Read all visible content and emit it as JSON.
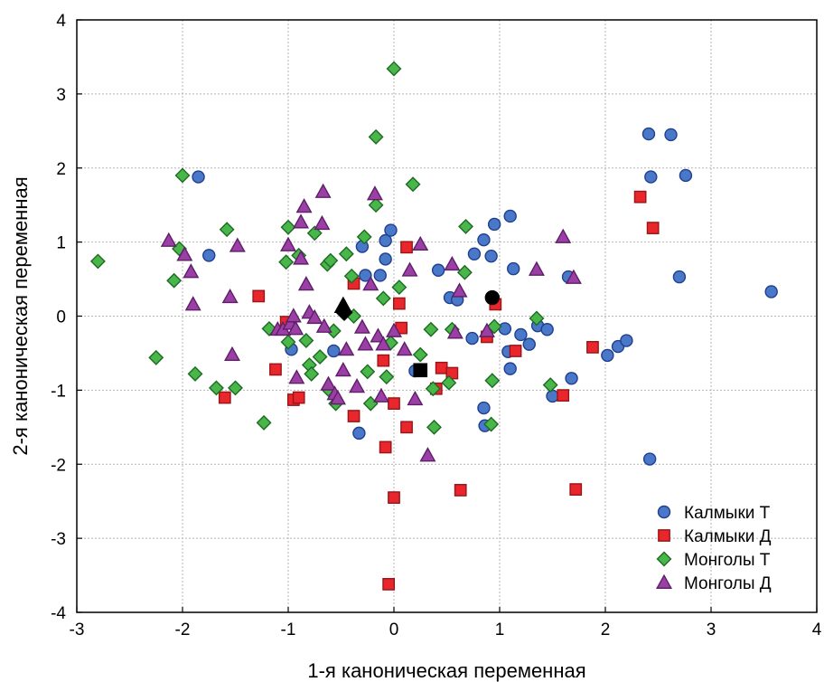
{
  "chart_data": {
    "type": "scatter",
    "title": "",
    "xlabel": "1-я каноническая переменная",
    "ylabel": "2-я каноническая переменная",
    "xlim": [
      -3,
      4
    ],
    "ylim": [
      -4,
      4
    ],
    "xticks": [
      "-3",
      "-2",
      "-1",
      "0",
      "1",
      "2",
      "3",
      "4"
    ],
    "yticks": [
      "4",
      "3",
      "2",
      "1",
      "0",
      "-1",
      "-2",
      "-3",
      "-4"
    ],
    "grid": true,
    "legend_position": "bottom-right",
    "series": [
      {
        "name": "Калмыки Т",
        "marker": "circle",
        "color": "#4a78c8",
        "edge": "#1f3f8f",
        "points": [
          [
            -1.85,
            1.88
          ],
          [
            -1.75,
            0.82
          ],
          [
            -0.97,
            -0.45
          ],
          [
            -0.57,
            -0.47
          ],
          [
            -0.33,
            -1.58
          ],
          [
            -0.3,
            0.94
          ],
          [
            -0.27,
            0.55
          ],
          [
            -0.13,
            0.55
          ],
          [
            -0.08,
            0.77
          ],
          [
            -0.08,
            1.02
          ],
          [
            -0.03,
            1.16
          ],
          [
            0.2,
            -0.74
          ],
          [
            0.42,
            0.62
          ],
          [
            0.53,
            0.25
          ],
          [
            0.6,
            0.22
          ],
          [
            0.74,
            -0.3
          ],
          [
            0.76,
            0.84
          ],
          [
            0.85,
            1.03
          ],
          [
            0.85,
            -1.24
          ],
          [
            0.86,
            -1.48
          ],
          [
            0.92,
            0.81
          ],
          [
            0.95,
            1.24
          ],
          [
            1.05,
            -0.17
          ],
          [
            1.08,
            -0.48
          ],
          [
            1.1,
            1.35
          ],
          [
            1.1,
            -0.71
          ],
          [
            1.13,
            0.64
          ],
          [
            1.2,
            -0.25
          ],
          [
            1.28,
            -0.38
          ],
          [
            1.36,
            -0.13
          ],
          [
            1.45,
            -0.18
          ],
          [
            1.5,
            -1.08
          ],
          [
            1.65,
            0.53
          ],
          [
            1.68,
            -0.84
          ],
          [
            2.02,
            -0.53
          ],
          [
            2.12,
            -0.41
          ],
          [
            2.2,
            -0.33
          ],
          [
            2.41,
            2.46
          ],
          [
            2.42,
            -1.93
          ],
          [
            2.43,
            1.88
          ],
          [
            2.62,
            2.45
          ],
          [
            2.7,
            0.53
          ],
          [
            2.76,
            1.9
          ],
          [
            3.57,
            0.33
          ]
        ]
      },
      {
        "name": "Калмыки Д",
        "marker": "square",
        "color": "#e8262c",
        "edge": "#9a1418",
        "points": [
          [
            -1.6,
            -1.1
          ],
          [
            -1.28,
            0.27
          ],
          [
            -1.12,
            -0.72
          ],
          [
            -1.02,
            -0.08
          ],
          [
            -0.95,
            -1.13
          ],
          [
            -0.9,
            -1.1
          ],
          [
            -0.38,
            0.44
          ],
          [
            -0.38,
            -1.35
          ],
          [
            -0.1,
            -0.6
          ],
          [
            -0.08,
            -1.77
          ],
          [
            -0.05,
            -3.62
          ],
          [
            0.0,
            -1.18
          ],
          [
            0.0,
            -2.45
          ],
          [
            0.05,
            0.17
          ],
          [
            0.07,
            -0.16
          ],
          [
            0.12,
            0.93
          ],
          [
            0.12,
            -1.5
          ],
          [
            0.25,
            -0.72
          ],
          [
            0.4,
            -0.98
          ],
          [
            0.45,
            -0.7
          ],
          [
            0.55,
            -0.77
          ],
          [
            0.63,
            -2.35
          ],
          [
            0.88,
            -0.28
          ],
          [
            0.96,
            0.16
          ],
          [
            1.15,
            -0.47
          ],
          [
            1.6,
            -1.07
          ],
          [
            1.72,
            -2.34
          ],
          [
            1.88,
            -0.42
          ],
          [
            2.33,
            1.61
          ],
          [
            2.45,
            1.19
          ]
        ]
      },
      {
        "name": "Монголы Т",
        "marker": "diamond",
        "color": "#49b649",
        "edge": "#1d6b23",
        "points": [
          [
            -2.8,
            0.74
          ],
          [
            -2.25,
            -0.56
          ],
          [
            -2.08,
            0.48
          ],
          [
            -2.03,
            0.91
          ],
          [
            -2.0,
            1.9
          ],
          [
            -1.88,
            -0.78
          ],
          [
            -1.68,
            -0.97
          ],
          [
            -1.58,
            1.17
          ],
          [
            -1.5,
            -0.97
          ],
          [
            -1.23,
            -1.44
          ],
          [
            -1.18,
            -0.17
          ],
          [
            -1.02,
            0.73
          ],
          [
            -1.0,
            1.2
          ],
          [
            -1.0,
            -0.35
          ],
          [
            -0.9,
            0.82
          ],
          [
            -0.83,
            -0.33
          ],
          [
            -0.8,
            -0.66
          ],
          [
            -0.78,
            -0.78
          ],
          [
            -0.75,
            1.12
          ],
          [
            -0.7,
            -0.55
          ],
          [
            -0.63,
            0.7
          ],
          [
            -0.62,
            -0.99
          ],
          [
            -0.6,
            0.75
          ],
          [
            -0.57,
            -0.2
          ],
          [
            -0.55,
            -1.18
          ],
          [
            -0.48,
            0.05
          ],
          [
            -0.45,
            0.84
          ],
          [
            -0.4,
            0.54
          ],
          [
            -0.38,
            0.0
          ],
          [
            -0.28,
            1.07
          ],
          [
            -0.25,
            -0.75
          ],
          [
            -0.22,
            -1.18
          ],
          [
            -0.17,
            2.42
          ],
          [
            -0.17,
            1.5
          ],
          [
            -0.1,
            0.24
          ],
          [
            -0.07,
            -0.82
          ],
          [
            -0.03,
            -0.36
          ],
          [
            0.0,
            3.34
          ],
          [
            0.05,
            0.39
          ],
          [
            0.18,
            1.78
          ],
          [
            0.25,
            -0.52
          ],
          [
            0.35,
            -0.18
          ],
          [
            0.37,
            -0.98
          ],
          [
            0.38,
            -1.5
          ],
          [
            0.52,
            -0.9
          ],
          [
            0.55,
            -0.18
          ],
          [
            0.67,
            0.59
          ],
          [
            0.68,
            1.21
          ],
          [
            0.92,
            -1.46
          ],
          [
            0.93,
            -0.87
          ],
          [
            0.95,
            -0.14
          ],
          [
            1.35,
            -0.03
          ],
          [
            1.48,
            -0.93
          ]
        ]
      },
      {
        "name": "Монголы Д",
        "marker": "triangle",
        "color": "#9b3fa6",
        "edge": "#5d1f66",
        "points": [
          [
            -2.13,
            1.02
          ],
          [
            -1.98,
            0.83
          ],
          [
            -1.92,
            0.6
          ],
          [
            -1.9,
            0.16
          ],
          [
            -1.53,
            -0.52
          ],
          [
            -1.55,
            0.26
          ],
          [
            -1.48,
            0.95
          ],
          [
            -1.1,
            -0.18
          ],
          [
            -1.05,
            -0.18
          ],
          [
            -1.0,
            0.96
          ],
          [
            -0.98,
            -0.1
          ],
          [
            -0.95,
            0.0
          ],
          [
            -0.93,
            -0.17
          ],
          [
            -0.92,
            -0.83
          ],
          [
            -0.88,
            0.78
          ],
          [
            -0.88,
            1.27
          ],
          [
            -0.85,
            1.48
          ],
          [
            -0.83,
            0.43
          ],
          [
            -0.8,
            0.05
          ],
          [
            -0.75,
            -0.02
          ],
          [
            -0.68,
            1.25
          ],
          [
            -0.67,
            1.68
          ],
          [
            -0.66,
            -0.14
          ],
          [
            -0.62,
            -0.92
          ],
          [
            -0.56,
            -1.05
          ],
          [
            -0.53,
            -1.11
          ],
          [
            -0.48,
            -0.73
          ],
          [
            -0.45,
            -0.45
          ],
          [
            -0.35,
            -0.95
          ],
          [
            -0.3,
            -0.15
          ],
          [
            -0.27,
            -0.38
          ],
          [
            -0.22,
            0.43
          ],
          [
            -0.18,
            1.65
          ],
          [
            -0.15,
            -0.27
          ],
          [
            -0.12,
            -1.08
          ],
          [
            -0.1,
            -0.38
          ],
          [
            0.0,
            -0.2
          ],
          [
            0.1,
            -0.45
          ],
          [
            0.15,
            0.62
          ],
          [
            0.2,
            -1.12
          ],
          [
            0.25,
            0.97
          ],
          [
            0.32,
            -1.88
          ],
          [
            0.55,
            0.7
          ],
          [
            0.58,
            -0.22
          ],
          [
            0.62,
            0.34
          ],
          [
            0.88,
            -0.2
          ],
          [
            1.35,
            0.63
          ],
          [
            1.6,
            1.07
          ],
          [
            1.7,
            0.52
          ]
        ]
      }
    ],
    "centroids": [
      {
        "series": "Калмыки Т",
        "marker": "circle",
        "x": 0.93,
        "y": 0.25
      },
      {
        "series": "Калмыки Д",
        "marker": "square",
        "x": 0.25,
        "y": -0.73
      },
      {
        "series": "Монголы Т",
        "marker": "diamond",
        "x": -0.47,
        "y": 0.05
      },
      {
        "series": "Монголы Д",
        "marker": "triangle",
        "x": -0.48,
        "y": 0.14
      }
    ],
    "centroid_color": "#000000"
  }
}
